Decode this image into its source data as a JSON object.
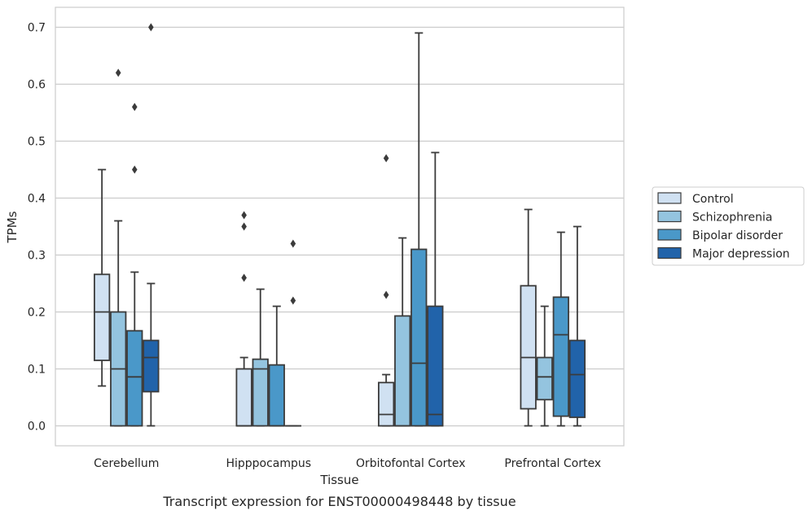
{
  "caption": "Transcript expression for ENST00000498448 by tissue",
  "chart_data": {
    "type": "boxplot",
    "title": "",
    "xlabel": "Tissue",
    "ylabel": "TPMs",
    "ylim": [
      -0.035,
      0.735
    ],
    "yticks": [
      0.0,
      0.1,
      0.2,
      0.3,
      0.4,
      0.5,
      0.6,
      0.7
    ],
    "ytick_labels": [
      "0.0",
      "0.1",
      "0.2",
      "0.3",
      "0.4",
      "0.5",
      "0.6",
      "0.7"
    ],
    "grid": "horizontal",
    "legend_position": "right",
    "categories": [
      "Cerebellum",
      "Hipppocampus",
      "Orbitofontal Cortex",
      "Prefrontal Cortex"
    ],
    "series": [
      {
        "name": "Control",
        "color": "#d0e1f2",
        "boxes": [
          {
            "whisker_low": 0.07,
            "q1": 0.115,
            "median": 0.2,
            "q3": 0.266,
            "whisker_high": 0.45,
            "outliers": []
          },
          {
            "whisker_low": 0.0,
            "q1": 0.0,
            "median": 0.0,
            "q3": 0.1,
            "whisker_high": 0.12,
            "outliers": [
              0.26,
              0.35,
              0.37
            ]
          },
          {
            "whisker_low": 0.0,
            "q1": 0.0,
            "median": 0.02,
            "q3": 0.076,
            "whisker_high": 0.09,
            "outliers": [
              0.23,
              0.47
            ]
          },
          {
            "whisker_low": 0.0,
            "q1": 0.03,
            "median": 0.12,
            "q3": 0.246,
            "whisker_high": 0.38,
            "outliers": []
          }
        ]
      },
      {
        "name": "Schizophrenia",
        "color": "#94c4df",
        "boxes": [
          {
            "whisker_low": 0.0,
            "q1": 0.0,
            "median": 0.1,
            "q3": 0.2,
            "whisker_high": 0.36,
            "outliers": [
              0.62
            ]
          },
          {
            "whisker_low": 0.0,
            "q1": 0.0,
            "median": 0.1,
            "q3": 0.117,
            "whisker_high": 0.24,
            "outliers": []
          },
          {
            "whisker_low": 0.0,
            "q1": 0.0,
            "median": 0.0,
            "q3": 0.193,
            "whisker_high": 0.33,
            "outliers": []
          },
          {
            "whisker_low": 0.0,
            "q1": 0.046,
            "median": 0.086,
            "q3": 0.12,
            "whisker_high": 0.21,
            "outliers": []
          }
        ]
      },
      {
        "name": "Bipolar disorder",
        "color": "#4a98c9",
        "boxes": [
          {
            "whisker_low": 0.0,
            "q1": 0.0,
            "median": 0.086,
            "q3": 0.167,
            "whisker_high": 0.27,
            "outliers": [
              0.45,
              0.56
            ]
          },
          {
            "whisker_low": 0.0,
            "q1": 0.0,
            "median": 0.0,
            "q3": 0.107,
            "whisker_high": 0.21,
            "outliers": []
          },
          {
            "whisker_low": 0.0,
            "q1": 0.0,
            "median": 0.11,
            "q3": 0.31,
            "whisker_high": 0.69,
            "outliers": []
          },
          {
            "whisker_low": 0.0,
            "q1": 0.017,
            "median": 0.16,
            "q3": 0.226,
            "whisker_high": 0.34,
            "outliers": []
          }
        ]
      },
      {
        "name": "Major depression",
        "color": "#2163aa",
        "boxes": [
          {
            "whisker_low": 0.0,
            "q1": 0.06,
            "median": 0.12,
            "q3": 0.15,
            "whisker_high": 0.25,
            "outliers": [
              0.7
            ]
          },
          {
            "whisker_low": 0.0,
            "q1": 0.0,
            "median": 0.0,
            "q3": 0.0,
            "whisker_high": 0.0,
            "outliers": [
              0.22,
              0.32
            ]
          },
          {
            "whisker_low": 0.0,
            "q1": 0.0,
            "median": 0.02,
            "q3": 0.21,
            "whisker_high": 0.48,
            "outliers": []
          },
          {
            "whisker_low": 0.0,
            "q1": 0.015,
            "median": 0.09,
            "q3": 0.15,
            "whisker_high": 0.35,
            "outliers": []
          }
        ]
      }
    ]
  }
}
